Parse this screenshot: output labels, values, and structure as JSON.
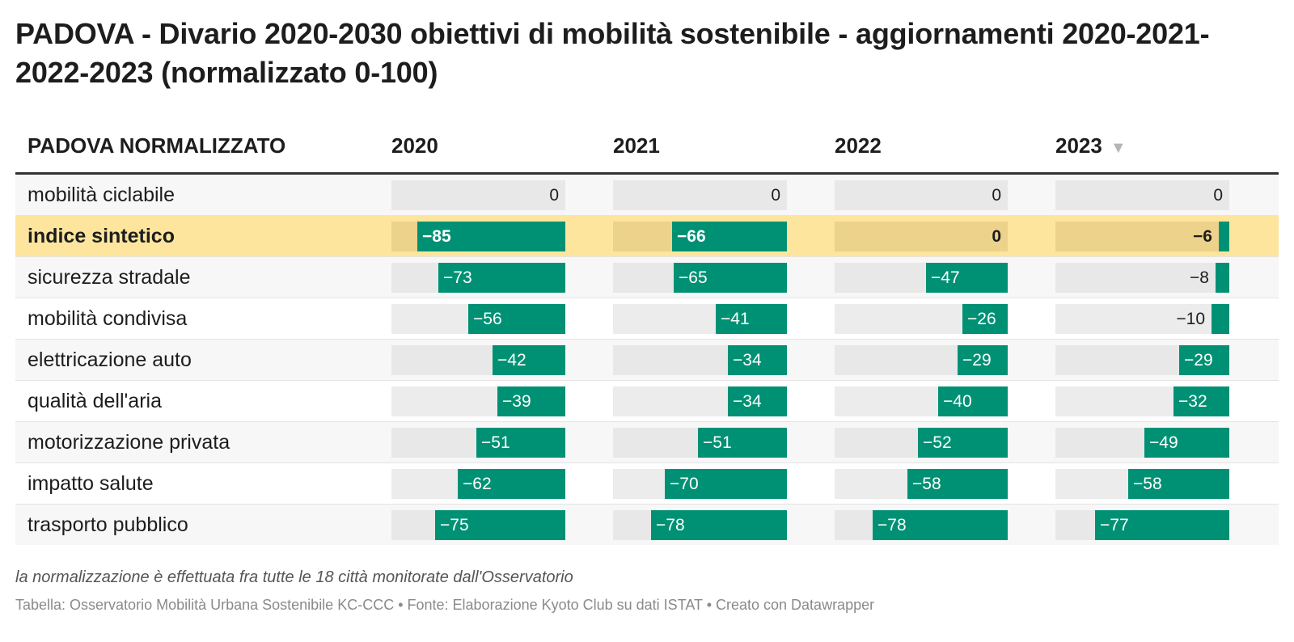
{
  "title": "PADOVA - Divario 2020-2030 obiettivi di mobilità sostenibile - aggiornamenti 2020-2021-2022-2023 (normalizzato 0-100)",
  "note": "la normalizzazione è effettuata fra tutte le 18 città monitorate dall'Osservatorio",
  "source": "Tabella: Osservatorio Mobilità Urbana Sostenibile KC-CCC • Fonte: Elaborazione Kyoto Club su dati ISTAT • Creato con Datawrapper",
  "header": {
    "label_column": "PADOVA NORMALIZZATO",
    "sort_icon": "sort-down-triangle",
    "sort_glyph": "▼"
  },
  "colors": {
    "bar": "#009174",
    "highlight": "#fde59e",
    "track": "#ececec"
  },
  "chart_data": {
    "type": "table",
    "columns": [
      "2020",
      "2021",
      "2022",
      "2023"
    ],
    "value_range": [
      -100,
      0
    ],
    "highlighted_row": "indice sintetico",
    "rows": [
      {
        "label": "mobilità ciclabile",
        "values": [
          0,
          0,
          0,
          0
        ]
      },
      {
        "label": "indice sintetico",
        "values": [
          -85,
          -66,
          0,
          -6
        ]
      },
      {
        "label": "sicurezza stradale",
        "values": [
          -73,
          -65,
          -47,
          -8
        ]
      },
      {
        "label": "mobilità condivisa",
        "values": [
          -56,
          -41,
          -26,
          -10
        ]
      },
      {
        "label": "elettricazione auto",
        "values": [
          -42,
          -34,
          -29,
          -29
        ]
      },
      {
        "label": "qualità dell'aria",
        "values": [
          -39,
          -34,
          -40,
          -32
        ]
      },
      {
        "label": "motorizzazione privata",
        "values": [
          -51,
          -51,
          -52,
          -49
        ]
      },
      {
        "label": "impatto salute",
        "values": [
          -62,
          -70,
          -58,
          -58
        ]
      },
      {
        "label": "trasporto pubblico",
        "values": [
          -75,
          -78,
          -78,
          -77
        ]
      }
    ]
  }
}
